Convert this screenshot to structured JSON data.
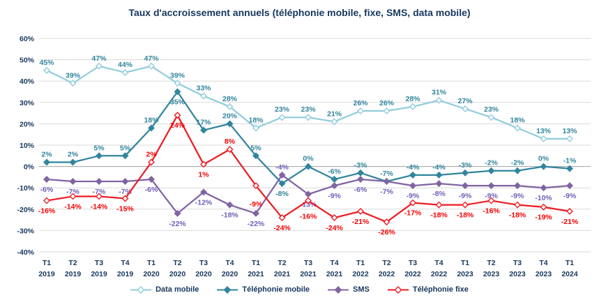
{
  "chart_data": {
    "type": "line",
    "title": "Taux d'accroissement annuels (téléphonie mobile, fixe, SMS, data mobile)",
    "ylim": [
      -40,
      60
    ],
    "grid": true,
    "legend_position": "bottom",
    "y_axis": {
      "ticks": [
        {
          "value": 60,
          "label": "60%"
        },
        {
          "value": 50,
          "label": "50%"
        },
        {
          "value": 40,
          "label": "40%"
        },
        {
          "value": 30,
          "label": "30%"
        },
        {
          "value": 20,
          "label": "20%"
        },
        {
          "value": 10,
          "label": "10%"
        },
        {
          "value": 0,
          "label": "0%"
        },
        {
          "value": -10,
          "label": "-10%"
        },
        {
          "value": -20,
          "label": "-20%"
        },
        {
          "value": -30,
          "label": "-30%"
        },
        {
          "value": -40,
          "label": "-40%"
        }
      ]
    },
    "categories": [
      {
        "q": "T1",
        "year": "2019"
      },
      {
        "q": "T2",
        "year": "2019"
      },
      {
        "q": "T3",
        "year": "2019"
      },
      {
        "q": "T4",
        "year": "2019"
      },
      {
        "q": "T1",
        "year": "2020"
      },
      {
        "q": "T2",
        "year": "2020"
      },
      {
        "q": "T3",
        "year": "2020"
      },
      {
        "q": "T4",
        "year": "2020"
      },
      {
        "q": "T1",
        "year": "2021"
      },
      {
        "q": "T2",
        "year": "2021"
      },
      {
        "q": "T3",
        "year": "2021"
      },
      {
        "q": "T4",
        "year": "2021"
      },
      {
        "q": "T1",
        "year": "2022"
      },
      {
        "q": "T2",
        "year": "2022"
      },
      {
        "q": "T3",
        "year": "2022"
      },
      {
        "q": "T4",
        "year": "2022"
      },
      {
        "q": "T1",
        "year": "2023"
      },
      {
        "q": "T2",
        "year": "2023"
      },
      {
        "q": "T3",
        "year": "2023"
      },
      {
        "q": "T4",
        "year": "2023"
      },
      {
        "q": "T1",
        "year": "2024"
      }
    ],
    "series": [
      {
        "name": "Data mobile",
        "color": "#92CDDC",
        "label_color": "#31859C",
        "marker": "diamond",
        "values": [
          45,
          39,
          47,
          44,
          47,
          39,
          33,
          28,
          18,
          23,
          23,
          21,
          26,
          26,
          28,
          31,
          27,
          23,
          18,
          13,
          13
        ]
      },
      {
        "name": "Téléphonie mobile",
        "color": "#31859C",
        "label_color": "#31859C",
        "marker": "diamond",
        "values": [
          2,
          2,
          5,
          5,
          18,
          35,
          17,
          20,
          5,
          -8,
          0,
          -6,
          -3,
          -7,
          -4,
          -4,
          -3,
          -2,
          -2,
          0,
          -1
        ]
      },
      {
        "name": "SMS",
        "color": "#8064A2",
        "label_color": "#7060B8",
        "marker": "diamond",
        "values": [
          -6,
          -7,
          -7,
          -7,
          -6,
          -22,
          -12,
          -18,
          -22,
          -4,
          -13,
          -9,
          -6,
          -7,
          -9,
          -8,
          -9,
          -9,
          -9,
          -10,
          -9
        ]
      },
      {
        "name": "Téléphonie fixe",
        "color": "#ED1C24",
        "label_color": "#F40000",
        "marker": "diamond",
        "values": [
          -16,
          -14,
          -14,
          -15,
          2,
          24,
          1,
          8,
          -9,
          -24,
          -16,
          -24,
          -21,
          -26,
          -17,
          -18,
          -18,
          -16,
          -18,
          -19,
          -21
        ]
      }
    ],
    "colors": {
      "title": "#17375E",
      "axis_labels": "#17375E",
      "gridline": "#D9D9D9",
      "zero_line": "#A0A0A0",
      "background": "#FFFFFF"
    }
  }
}
